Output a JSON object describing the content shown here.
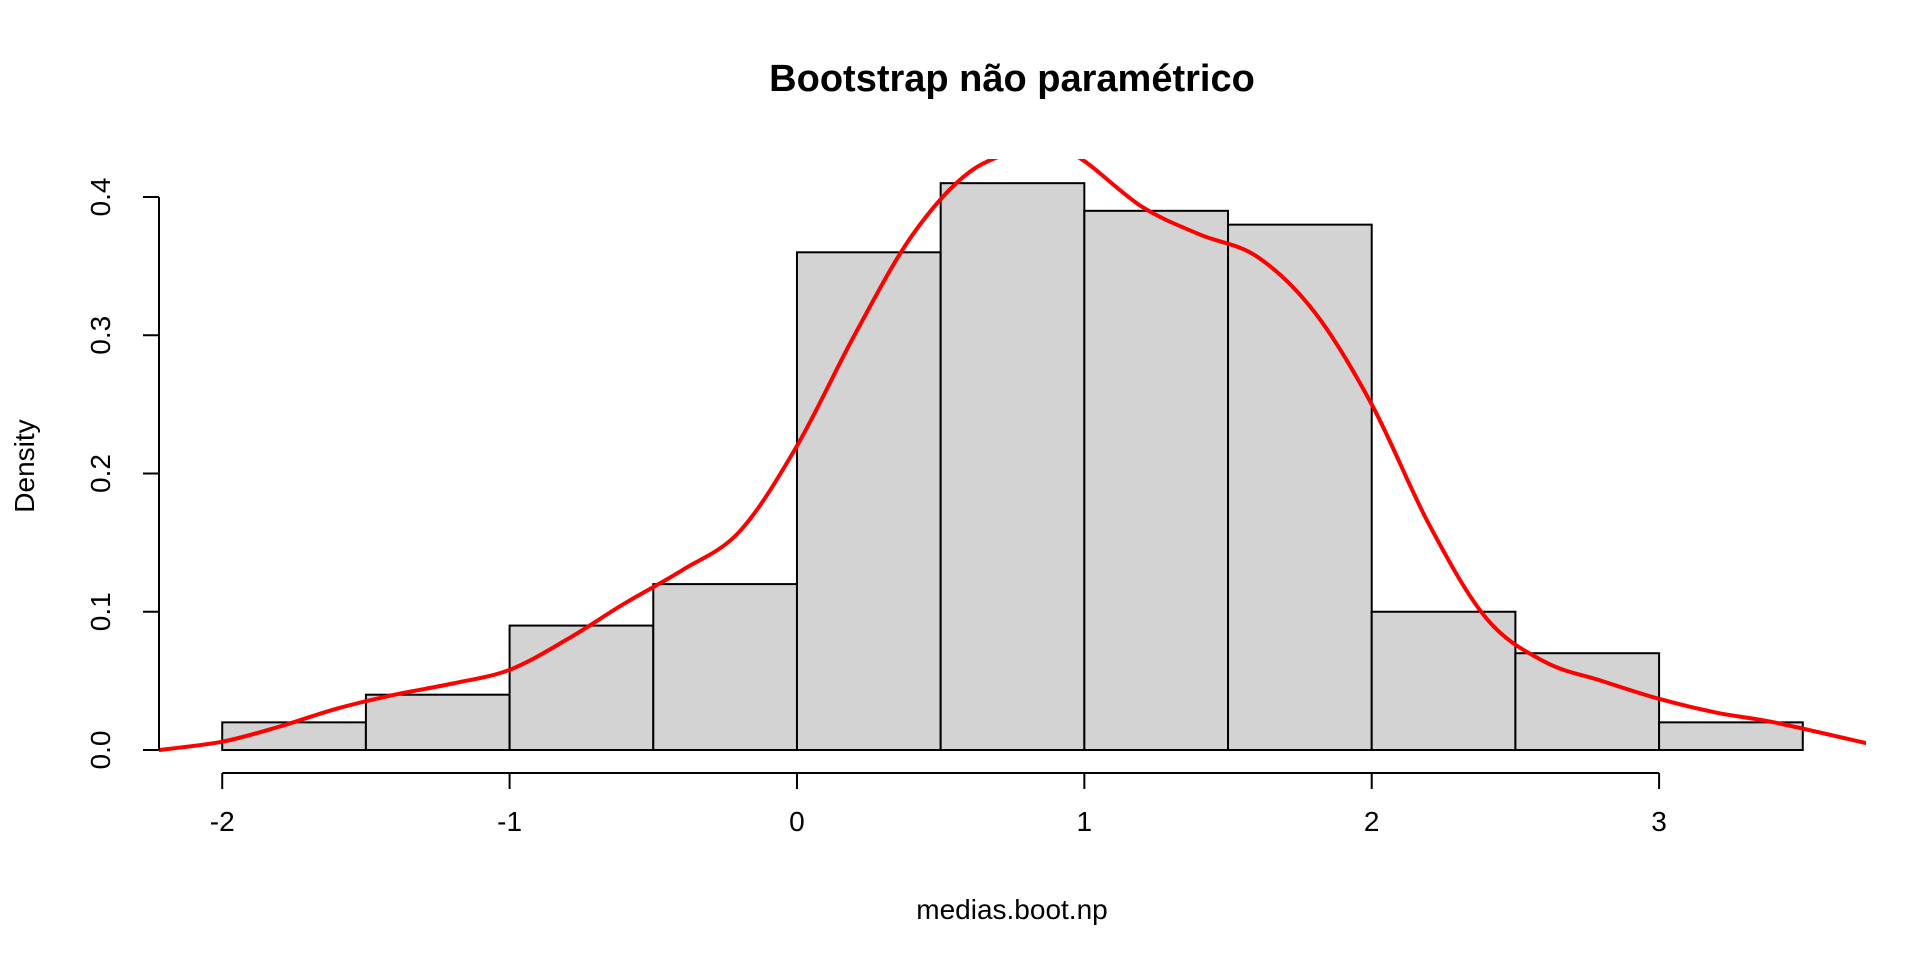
{
  "chart_data": {
    "type": "bar",
    "title": "Bootstrap não paramétrico",
    "xlabel": "medias.boot.np",
    "ylabel": "Density",
    "xlim": [
      -2.22,
      3.72
    ],
    "ylim": [
      0,
      0.4
    ],
    "x_ticks": [
      "-2",
      "-1",
      "0",
      "1",
      "2",
      "3"
    ],
    "y_ticks": [
      "0.0",
      "0.1",
      "0.2",
      "0.3",
      "0.4"
    ],
    "grid": false,
    "legend": "none",
    "bar_color": "#d3d3d3",
    "histogram": {
      "breaks": [
        -2,
        -1.5,
        -1,
        -0.5,
        0,
        0.5,
        1,
        1.5,
        2,
        2.5,
        3,
        3.5
      ],
      "density": [
        0.02,
        0.04,
        0.09,
        0.12,
        0.36,
        0.41,
        0.39,
        0.38,
        0.1,
        0.07,
        0.02
      ]
    },
    "density_curve": {
      "color": "#ff0000",
      "x": [
        -2.22,
        -2.0,
        -1.8,
        -1.6,
        -1.4,
        -1.2,
        -1.0,
        -0.8,
        -0.6,
        -0.4,
        -0.2,
        0.0,
        0.2,
        0.4,
        0.6,
        0.8,
        0.9,
        1.0,
        1.2,
        1.4,
        1.6,
        1.8,
        2.0,
        2.2,
        2.4,
        2.6,
        2.8,
        3.0,
        3.2,
        3.4,
        3.72
      ],
      "y": [
        0.0,
        0.006,
        0.017,
        0.03,
        0.04,
        0.048,
        0.058,
        0.08,
        0.106,
        0.13,
        0.158,
        0.22,
        0.3,
        0.372,
        0.418,
        0.435,
        0.435,
        0.426,
        0.393,
        0.373,
        0.357,
        0.317,
        0.25,
        0.163,
        0.095,
        0.064,
        0.05,
        0.037,
        0.027,
        0.02,
        0.005
      ]
    }
  }
}
